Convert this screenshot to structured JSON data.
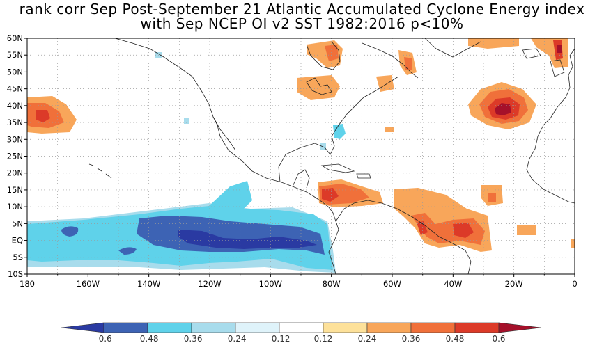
{
  "chart_data": {
    "type": "heatmap",
    "title": "rank corr Sep Post-September 21 Atlantic Accumulated Cyclone Energy index",
    "subtitle": "with Sep NCEP OI v2 SST 1982:2016 p<10%",
    "x_ticks": [
      "180",
      "160W",
      "140W",
      "120W",
      "100W",
      "80W",
      "60W",
      "40W",
      "20W",
      "0"
    ],
    "y_ticks": [
      "60N",
      "55N",
      "50N",
      "45N",
      "40N",
      "35N",
      "30N",
      "25N",
      "20N",
      "15N",
      "10N",
      "5N",
      "EQ",
      "5S",
      "10S"
    ],
    "xlim": [
      -180,
      0
    ],
    "ylim": [
      -10,
      60
    ],
    "grid": true,
    "colorbar": {
      "levels": [
        "-0.6",
        "-0.48",
        "-0.36",
        "-0.24",
        "-0.12",
        "0.12",
        "0.24",
        "0.36",
        "0.48",
        "0.6"
      ],
      "colors": [
        "#2a3aa2",
        "#3d63b4",
        "#5fd2ea",
        "#a8dcec",
        "#dff3fa",
        "#ffffff",
        "#fde19a",
        "#f8a65a",
        "#f0703a",
        "#dc3a28",
        "#a5102a"
      ]
    },
    "regions": [
      {
        "name": "central Pacific equatorial band",
        "sign": "negative",
        "lon": [
          -180,
          -78
        ],
        "lat": [
          -7,
          10
        ],
        "peak": -0.6
      },
      {
        "name": "central-east Pacific core",
        "sign": "negative",
        "lon": [
          -140,
          -83
        ],
        "lat": [
          -3,
          5
        ],
        "peak": -0.6
      },
      {
        "name": "Florida coast",
        "sign": "negative",
        "lon": [
          -82,
          -78
        ],
        "lat": [
          27,
          33
        ],
        "peak": -0.36
      },
      {
        "name": "northwest Pacific",
        "sign": "positive",
        "lon": [
          -180,
          -163
        ],
        "lat": [
          33,
          41
        ],
        "peak": 0.48
      },
      {
        "name": "Caribbean",
        "sign": "positive",
        "lon": [
          -75,
          -62
        ],
        "lat": [
          12,
          19
        ],
        "peak": 0.48
      },
      {
        "name": "tropical Atlantic",
        "sign": "positive",
        "lon": [
          -60,
          -28
        ],
        "lat": [
          -1,
          15
        ],
        "peak": 0.48
      },
      {
        "name": "central North Atlantic",
        "sign": "positive",
        "lon": [
          -36,
          -13
        ],
        "lat": [
          33,
          44
        ],
        "peak": 0.6
      },
      {
        "name": "Hudson Bay and Labrador Sea",
        "sign": "positive",
        "lon": [
          -90,
          -55
        ],
        "lat": [
          42,
          60
        ],
        "peak": 0.36
      },
      {
        "name": "Northeast Atlantic",
        "sign": "positive",
        "lon": [
          -35,
          -3
        ],
        "lat": [
          53,
          60
        ],
        "peak": 0.48
      }
    ]
  }
}
